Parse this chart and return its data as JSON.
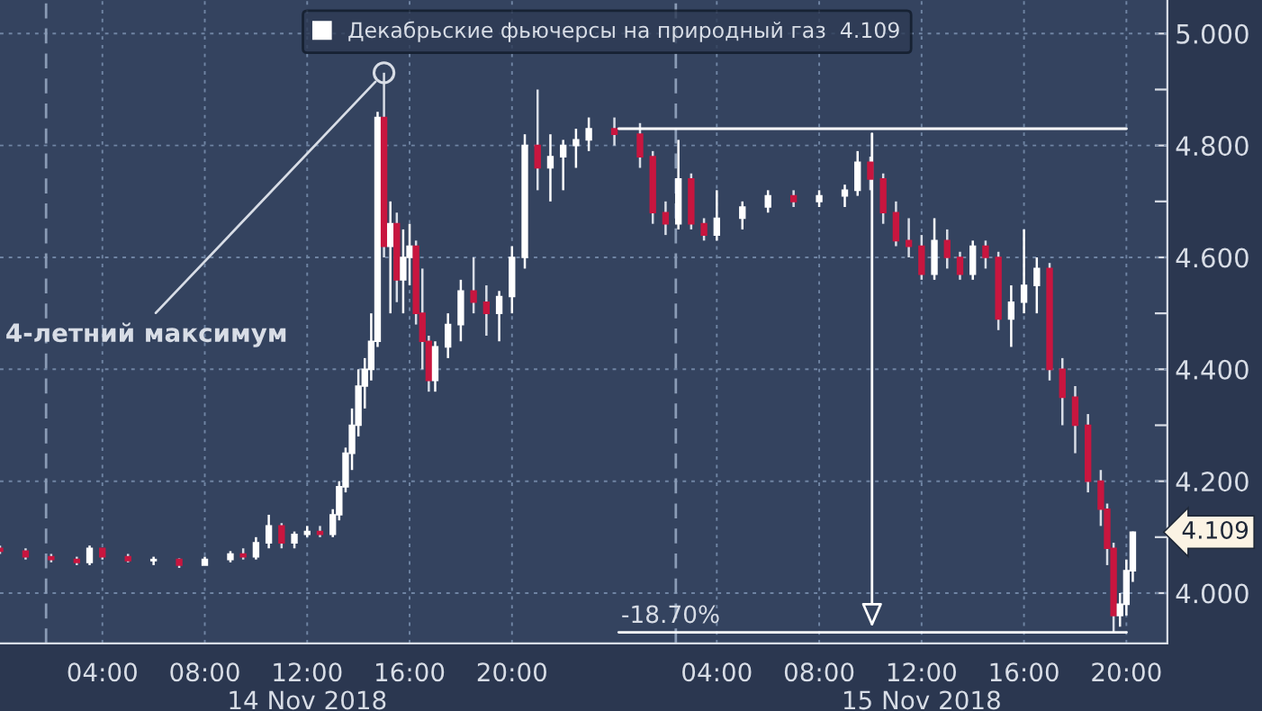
{
  "chart_data": {
    "type": "candlestick",
    "x": [
      "2018-11-14T00:00",
      "2018-11-14T01:00",
      "2018-11-14T02:00",
      "2018-11-14T03:00",
      "2018-11-14T03:30",
      "2018-11-14T04:00",
      "2018-11-14T05:00",
      "2018-11-14T06:00",
      "2018-11-14T07:00",
      "2018-11-14T08:00",
      "2018-11-14T09:00",
      "2018-11-14T09:30",
      "2018-11-14T10:00",
      "2018-11-14T10:30",
      "2018-11-14T11:00",
      "2018-11-14T11:30",
      "2018-11-14T12:00",
      "2018-11-14T12:30",
      "2018-11-14T13:00",
      "2018-11-14T13:15",
      "2018-11-14T13:30",
      "2018-11-14T13:45",
      "2018-11-14T14:00",
      "2018-11-14T14:15",
      "2018-11-14T14:30",
      "2018-11-14T14:45",
      "2018-11-14T15:00",
      "2018-11-14T15:15",
      "2018-11-14T15:30",
      "2018-11-14T15:45",
      "2018-11-14T16:00",
      "2018-11-14T16:15",
      "2018-11-14T16:30",
      "2018-11-14T16:45",
      "2018-11-14T17:00",
      "2018-11-14T17:30",
      "2018-11-14T18:00",
      "2018-11-14T18:30",
      "2018-11-14T19:00",
      "2018-11-14T19:30",
      "2018-11-14T20:00",
      "2018-11-14T20:30",
      "2018-11-14T21:00",
      "2018-11-14T21:30",
      "2018-11-14T22:00",
      "2018-11-14T22:30",
      "2018-11-14T23:00",
      "2018-11-15T00:00",
      "2018-11-15T01:00",
      "2018-11-15T01:30",
      "2018-11-15T02:00",
      "2018-11-15T02:30",
      "2018-11-15T03:00",
      "2018-11-15T03:30",
      "2018-11-15T04:00",
      "2018-11-15T05:00",
      "2018-11-15T06:00",
      "2018-11-15T07:00",
      "2018-11-15T08:00",
      "2018-11-15T09:00",
      "2018-11-15T09:30",
      "2018-11-15T10:00",
      "2018-11-15T10:30",
      "2018-11-15T11:00",
      "2018-11-15T11:30",
      "2018-11-15T12:00",
      "2018-11-15T12:30",
      "2018-11-15T13:00",
      "2018-11-15T13:30",
      "2018-11-15T14:00",
      "2018-11-15T14:30",
      "2018-11-15T15:00",
      "2018-11-15T15:30",
      "2018-11-15T16:00",
      "2018-11-15T16:30",
      "2018-11-15T17:00",
      "2018-11-15T17:30",
      "2018-11-15T18:00",
      "2018-11-15T18:30",
      "2018-11-15T19:00",
      "2018-11-15T19:15",
      "2018-11-15T19:30",
      "2018-11-15T19:45",
      "2018-11-15T20:00",
      "2018-11-15T20:15"
    ],
    "series": [
      {
        "name": "Декабрьские фьючерсы на природный газ  4.109",
        "color": "#ffffff",
        "ohlc": [
          [
            4.08,
            4.085,
            4.07,
            4.075
          ],
          [
            4.075,
            4.08,
            4.06,
            4.065
          ],
          [
            4.065,
            4.07,
            4.055,
            4.06
          ],
          [
            4.06,
            4.065,
            4.05,
            4.055
          ],
          [
            4.055,
            4.085,
            4.05,
            4.08
          ],
          [
            4.08,
            4.08,
            4.06,
            4.065
          ],
          [
            4.065,
            4.07,
            4.055,
            4.058
          ],
          [
            4.058,
            4.065,
            4.05,
            4.06
          ],
          [
            4.06,
            4.062,
            4.045,
            4.05
          ],
          [
            4.05,
            4.065,
            4.05,
            4.06
          ],
          [
            4.06,
            4.075,
            4.055,
            4.07
          ],
          [
            4.07,
            4.08,
            4.06,
            4.065
          ],
          [
            4.065,
            4.1,
            4.06,
            4.09
          ],
          [
            4.09,
            4.14,
            4.08,
            4.12
          ],
          [
            4.12,
            4.125,
            4.08,
            4.09
          ],
          [
            4.09,
            4.11,
            4.08,
            4.105
          ],
          [
            4.105,
            4.12,
            4.1,
            4.11
          ],
          [
            4.11,
            4.12,
            4.1,
            4.105
          ],
          [
            4.105,
            4.15,
            4.1,
            4.14
          ],
          [
            4.14,
            4.2,
            4.13,
            4.19
          ],
          [
            4.19,
            4.26,
            4.18,
            4.25
          ],
          [
            4.25,
            4.33,
            4.22,
            4.3
          ],
          [
            4.3,
            4.4,
            4.28,
            4.37
          ],
          [
            4.37,
            4.42,
            4.33,
            4.4
          ],
          [
            4.4,
            4.5,
            4.38,
            4.45
          ],
          [
            4.45,
            4.86,
            4.44,
            4.85
          ],
          [
            4.85,
            4.93,
            4.6,
            4.62
          ],
          [
            4.62,
            4.7,
            4.5,
            4.66
          ],
          [
            4.66,
            4.68,
            4.52,
            4.56
          ],
          [
            4.56,
            4.65,
            4.5,
            4.6
          ],
          [
            4.6,
            4.66,
            4.55,
            4.62
          ],
          [
            4.62,
            4.63,
            4.48,
            4.5
          ],
          [
            4.5,
            4.58,
            4.4,
            4.45
          ],
          [
            4.45,
            4.46,
            4.36,
            4.38
          ],
          [
            4.38,
            4.45,
            4.36,
            4.44
          ],
          [
            4.44,
            4.5,
            4.42,
            4.48
          ],
          [
            4.48,
            4.56,
            4.45,
            4.54
          ],
          [
            4.54,
            4.6,
            4.5,
            4.52
          ],
          [
            4.52,
            4.55,
            4.46,
            4.5
          ],
          [
            4.5,
            4.54,
            4.45,
            4.53
          ],
          [
            4.53,
            4.62,
            4.5,
            4.6
          ],
          [
            4.6,
            4.82,
            4.58,
            4.8
          ],
          [
            4.8,
            4.9,
            4.72,
            4.76
          ],
          [
            4.76,
            4.82,
            4.7,
            4.78
          ],
          [
            4.78,
            4.81,
            4.72,
            4.8
          ],
          [
            4.8,
            4.83,
            4.76,
            4.81
          ],
          [
            4.81,
            4.85,
            4.79,
            4.83
          ],
          [
            4.83,
            4.85,
            4.8,
            4.82
          ],
          [
            4.82,
            4.84,
            4.76,
            4.78
          ],
          [
            4.78,
            4.79,
            4.66,
            4.68
          ],
          [
            4.68,
            4.7,
            4.64,
            4.66
          ],
          [
            4.66,
            4.81,
            4.65,
            4.74
          ],
          [
            4.74,
            4.75,
            4.65,
            4.66
          ],
          [
            4.66,
            4.67,
            4.63,
            4.64
          ],
          [
            4.64,
            4.72,
            4.63,
            4.67
          ],
          [
            4.67,
            4.7,
            4.65,
            4.69
          ],
          [
            4.69,
            4.72,
            4.68,
            4.71
          ],
          [
            4.71,
            4.72,
            4.69,
            4.7
          ],
          [
            4.7,
            4.72,
            4.69,
            4.71
          ],
          [
            4.71,
            4.73,
            4.69,
            4.72
          ],
          [
            4.72,
            4.79,
            4.71,
            4.77
          ],
          [
            4.77,
            4.78,
            4.72,
            4.74
          ],
          [
            4.74,
            4.75,
            4.66,
            4.68
          ],
          [
            4.68,
            4.7,
            4.62,
            4.63
          ],
          [
            4.63,
            4.67,
            4.6,
            4.62
          ],
          [
            4.62,
            4.64,
            4.56,
            4.57
          ],
          [
            4.57,
            4.67,
            4.56,
            4.63
          ],
          [
            4.63,
            4.65,
            4.58,
            4.6
          ],
          [
            4.6,
            4.61,
            4.56,
            4.57
          ],
          [
            4.57,
            4.63,
            4.56,
            4.62
          ],
          [
            4.62,
            4.63,
            4.58,
            4.6
          ],
          [
            4.6,
            4.61,
            4.47,
            4.49
          ],
          [
            4.49,
            4.55,
            4.44,
            4.52
          ],
          [
            4.52,
            4.65,
            4.5,
            4.55
          ],
          [
            4.55,
            4.6,
            4.5,
            4.58
          ],
          [
            4.58,
            4.59,
            4.38,
            4.4
          ],
          [
            4.4,
            4.42,
            4.3,
            4.35
          ],
          [
            4.35,
            4.37,
            4.25,
            4.3
          ],
          [
            4.3,
            4.32,
            4.18,
            4.2
          ],
          [
            4.2,
            4.22,
            4.12,
            4.15
          ],
          [
            4.15,
            4.16,
            4.05,
            4.08
          ],
          [
            4.08,
            4.09,
            3.93,
            3.96
          ],
          [
            3.96,
            4.0,
            3.94,
            3.98
          ],
          [
            3.98,
            4.06,
            3.96,
            4.04
          ],
          [
            4.04,
            4.11,
            4.02,
            4.109
          ]
        ],
        "colors": [
          "#c8163f",
          "#c8163f",
          "#c8163f",
          "#c8163f",
          "#ffffff",
          "#c8163f",
          "#c8163f",
          "#ffffff",
          "#c8163f",
          "#ffffff",
          "#ffffff",
          "#c8163f",
          "#ffffff",
          "#ffffff",
          "#c8163f",
          "#ffffff",
          "#ffffff",
          "#c8163f",
          "#ffffff",
          "#ffffff",
          "#ffffff",
          "#ffffff",
          "#ffffff",
          "#ffffff",
          "#ffffff",
          "#ffffff",
          "#c8163f",
          "#ffffff",
          "#c8163f",
          "#ffffff",
          "#ffffff",
          "#c8163f",
          "#c8163f",
          "#c8163f",
          "#ffffff",
          "#ffffff",
          "#ffffff",
          "#c8163f",
          "#c8163f",
          "#ffffff",
          "#ffffff",
          "#ffffff",
          "#c8163f",
          "#ffffff",
          "#ffffff",
          "#ffffff",
          "#ffffff",
          "#c8163f",
          "#c8163f",
          "#c8163f",
          "#c8163f",
          "#ffffff",
          "#c8163f",
          "#c8163f",
          "#ffffff",
          "#ffffff",
          "#ffffff",
          "#c8163f",
          "#ffffff",
          "#ffffff",
          "#ffffff",
          "#c8163f",
          "#c8163f",
          "#c8163f",
          "#c8163f",
          "#c8163f",
          "#ffffff",
          "#c8163f",
          "#c8163f",
          "#ffffff",
          "#c8163f",
          "#c8163f",
          "#ffffff",
          "#ffffff",
          "#ffffff",
          "#c8163f",
          "#c8163f",
          "#c8163f",
          "#c8163f",
          "#c8163f",
          "#c8163f",
          "#c8163f",
          "#ffffff",
          "#ffffff",
          "#ffffff"
        ]
      }
    ],
    "xlim": [
      "2018-11-14T00:00",
      "2018-11-15T21:36"
    ],
    "xticks": [
      {
        "value": "2018-11-14T04:00",
        "label": "04:00"
      },
      {
        "value": "2018-11-14T08:00",
        "label": "08:00"
      },
      {
        "value": "2018-11-14T12:00",
        "label": "12:00\n14 Nov 2018"
      },
      {
        "value": "2018-11-14T16:00",
        "label": "16:00"
      },
      {
        "value": "2018-11-14T20:00",
        "label": "20:00"
      },
      {
        "value": "2018-11-15T04:00",
        "label": "04:00"
      },
      {
        "value": "2018-11-15T08:00",
        "label": "08:00"
      },
      {
        "value": "2018-11-15T12:00",
        "label": "12:00\n15 Nov 2018"
      },
      {
        "value": "2018-11-15T16:00",
        "label": "16:00"
      },
      {
        "value": "2018-11-15T20:00",
        "label": "20:00"
      }
    ],
    "ylim": [
      3.91,
      5.06
    ],
    "yticks": [
      {
        "value": 4.0,
        "label": "4.000"
      },
      {
        "value": 4.1,
        "label": null
      },
      {
        "value": 4.2,
        "label": "4.200"
      },
      {
        "value": 4.3,
        "label": null
      },
      {
        "value": 4.4,
        "label": "4.400"
      },
      {
        "value": 4.5,
        "label": null
      },
      {
        "value": 4.6,
        "label": "4.600"
      },
      {
        "value": 4.7,
        "label": null
      },
      {
        "value": 4.8,
        "label": "4.800"
      },
      {
        "value": 4.9,
        "label": null
      },
      {
        "value": 5.0,
        "label": "5.000"
      }
    ],
    "grid": true,
    "legend": "top",
    "ref_lines": [
      {
        "axis": "x",
        "value": "2018-11-14T01:48",
        "line_style": "dashed"
      },
      {
        "axis": "x",
        "value": "2018-11-15T02:24",
        "line_style": "dashed"
      },
      {
        "axis": "y",
        "value": 4.83,
        "color": "#ffffff"
      },
      {
        "axis": "y",
        "value": 3.93,
        "color": "#ffffff"
      }
    ],
    "annotations": [
      {
        "text": "4-летний максимум",
        "x": "2018-11-14T15:00",
        "y": 4.93
      },
      "-18.70%",
      {
        "text": "4.109",
        "x": "2018-11-15T20:15",
        "y": 4.109
      }
    ]
  }
}
